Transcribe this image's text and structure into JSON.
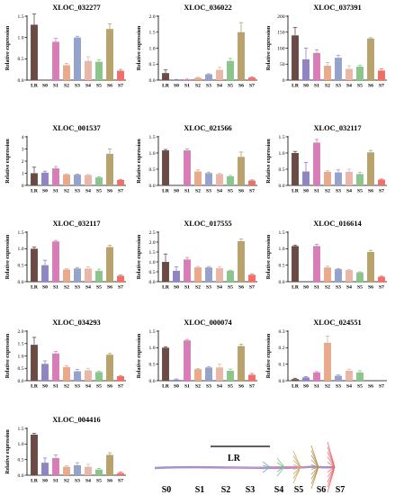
{
  "chart_data": [
    {
      "type": "bar",
      "title": "XLOC_032277",
      "ylabel": "Relative expression",
      "categories": [
        "LR",
        "S0",
        "S1",
        "S2",
        "S3",
        "S4",
        "S5",
        "S6",
        "S7"
      ],
      "values": [
        1.3,
        0,
        0.9,
        0.35,
        1.0,
        0.45,
        0.43,
        1.2,
        0.22
      ],
      "errors": [
        0.25,
        0,
        0.08,
        0.04,
        0.03,
        0.1,
        0.05,
        0.12,
        0.03
      ],
      "ylim": [
        0,
        1.5
      ],
      "yticks": [
        0,
        0.5,
        1.0,
        1.5
      ],
      "yticklabels": [
        "0.0",
        "0.5",
        "1.0",
        "1.5"
      ]
    },
    {
      "type": "bar",
      "title": "XLOC_036022",
      "ylabel": "Relative expression",
      "categories": [
        "LR",
        "S0",
        "S1",
        "S2",
        "S3",
        "S4",
        "S5",
        "S6",
        "S7"
      ],
      "values": [
        0.22,
        0.01,
        0.02,
        0.07,
        0.18,
        0.32,
        0.6,
        1.5,
        0.08
      ],
      "errors": [
        0.1,
        0.01,
        0.01,
        0.02,
        0.02,
        0.08,
        0.08,
        0.3,
        0.02
      ],
      "ylim": [
        0,
        2.0
      ],
      "yticks": [
        0,
        0.5,
        1.0,
        1.5,
        2.0
      ],
      "yticklabels": [
        "0.0",
        "0.5",
        "1.0",
        "1.5",
        "2.0"
      ]
    },
    {
      "type": "bar",
      "title": "XLOC_037391",
      "ylabel": "Relative expression",
      "categories": [
        "LR",
        "S0",
        "S1",
        "S2",
        "S3",
        "S4",
        "S5",
        "S6",
        "S7"
      ],
      "values": [
        140,
        65,
        85,
        45,
        70,
        35,
        42,
        130,
        30
      ],
      "errors": [
        25,
        35,
        10,
        10,
        8,
        10,
        5,
        3,
        5
      ],
      "ylim": [
        0,
        200
      ],
      "yticks": [
        0,
        50,
        100,
        150,
        200
      ],
      "yticklabels": [
        "0",
        "50",
        "100",
        "150",
        "200"
      ]
    },
    {
      "type": "bar",
      "title": "XLOC_001537",
      "ylabel": "Relative expression",
      "categories": [
        "LR",
        "S0",
        "S1",
        "S2",
        "S3",
        "S4",
        "S5",
        "S6",
        "S7"
      ],
      "values": [
        1.0,
        1.05,
        1.4,
        0.9,
        0.88,
        0.85,
        0.65,
        2.6,
        0.45
      ],
      "errors": [
        0.5,
        0.12,
        0.15,
        0.05,
        0.05,
        0.05,
        0.05,
        0.4,
        0.05
      ],
      "ylim": [
        0,
        4
      ],
      "yticks": [
        0,
        1,
        2,
        3,
        4
      ],
      "yticklabels": [
        "0",
        "1",
        "2",
        "3",
        "4"
      ]
    },
    {
      "type": "bar",
      "title": "XLOC_021566",
      "ylabel": "Relative expression",
      "categories": [
        "LR",
        "S0",
        "S1",
        "S2",
        "S3",
        "S4",
        "S5",
        "S6",
        "S7"
      ],
      "values": [
        1.08,
        0,
        1.08,
        0.43,
        0.38,
        0.35,
        0.28,
        0.88,
        0.15
      ],
      "errors": [
        0.03,
        0,
        0.05,
        0.05,
        0.02,
        0.02,
        0.03,
        0.15,
        0.02
      ],
      "ylim": [
        0,
        1.5
      ],
      "yticks": [
        0,
        0.5,
        1.0,
        1.5
      ],
      "yticklabels": [
        "0.0",
        "0.5",
        "1.0",
        "1.5"
      ]
    },
    {
      "type": "bar",
      "title": "XLOC_032117",
      "ylabel": "Relative expression",
      "categories": [
        "LR",
        "S0",
        "S1",
        "S2",
        "S3",
        "S4",
        "S5",
        "S6",
        "S7"
      ],
      "values": [
        1.0,
        0.43,
        1.32,
        0.42,
        0.4,
        0.42,
        0.35,
        1.02,
        0.18
      ],
      "errors": [
        0.05,
        0.28,
        0.1,
        0.03,
        0.08,
        0.08,
        0.05,
        0.06,
        0.02
      ],
      "ylim": [
        0,
        1.5
      ],
      "yticks": [
        0,
        0.5,
        1.0,
        1.5
      ],
      "yticklabels": [
        "0.0",
        "0.5",
        "1.0",
        "1.5"
      ]
    },
    {
      "type": "bar",
      "title": "XLOC_032117",
      "ylabel": "Relative expression",
      "categories": [
        "LR",
        "S0",
        "S1",
        "S2",
        "S3",
        "S4",
        "S5",
        "S6",
        "S7"
      ],
      "values": [
        1.0,
        0.5,
        1.22,
        0.37,
        0.4,
        0.4,
        0.33,
        1.05,
        0.18
      ],
      "errors": [
        0.05,
        0.15,
        0.03,
        0.02,
        0.03,
        0.05,
        0.05,
        0.05,
        0.03
      ],
      "ylim": [
        0,
        1.5
      ],
      "yticks": [
        0,
        0.5,
        1.0,
        1.5
      ],
      "yticklabels": [
        "0.0",
        "0.5",
        "1.0",
        "1.5"
      ]
    },
    {
      "type": "bar",
      "title": "XLOC_017555",
      "ylabel": "Relative expression",
      "categories": [
        "LR",
        "S0",
        "S1",
        "S2",
        "S3",
        "S4",
        "S5",
        "S6",
        "S7"
      ],
      "values": [
        1.0,
        0.55,
        1.12,
        0.72,
        0.72,
        0.68,
        0.55,
        2.05,
        0.35
      ],
      "errors": [
        0.4,
        0.2,
        0.1,
        0.05,
        0.05,
        0.08,
        0.03,
        0.1,
        0.05
      ],
      "ylim": [
        0,
        2.5
      ],
      "yticks": [
        0,
        0.5,
        1.0,
        1.5,
        2.0,
        2.5
      ],
      "yticklabels": [
        "0.0",
        "0.5",
        "1.0",
        "1.5",
        "2.0",
        "2.5"
      ]
    },
    {
      "type": "bar",
      "title": "XLOC_016614",
      "ylabel": "Relative expression",
      "categories": [
        "LR",
        "S0",
        "S1",
        "S2",
        "S3",
        "S4",
        "S5",
        "S6",
        "S7"
      ],
      "values": [
        1.08,
        0,
        1.08,
        0.43,
        0.38,
        0.35,
        0.28,
        0.9,
        0.15
      ],
      "errors": [
        0.03,
        0,
        0.05,
        0.04,
        0.02,
        0.02,
        0.02,
        0.05,
        0.02
      ],
      "ylim": [
        0,
        1.5
      ],
      "yticks": [
        0,
        0.5,
        1.0,
        1.5
      ],
      "yticklabels": [
        "0.0",
        "0.5",
        "1.0",
        "1.5"
      ]
    },
    {
      "type": "bar",
      "title": "XLOC_034293",
      "ylabel": "Relative expression",
      "categories": [
        "LR",
        "S0",
        "S1",
        "S2",
        "S3",
        "S4",
        "S5",
        "S6",
        "S7"
      ],
      "values": [
        1.45,
        0.68,
        1.1,
        0.55,
        0.38,
        0.42,
        0.35,
        1.05,
        0.18
      ],
      "errors": [
        0.3,
        0.12,
        0.08,
        0.06,
        0.08,
        0.08,
        0.04,
        0.05,
        0.03
      ],
      "ylim": [
        0,
        2.0
      ],
      "yticks": [
        0,
        0.5,
        1.0,
        1.5,
        2.0
      ],
      "yticklabels": [
        "0.0",
        "0.5",
        "1.0",
        "1.5",
        "2.0"
      ]
    },
    {
      "type": "bar",
      "title": "XLOC_000074",
      "ylabel": "Relative expression",
      "categories": [
        "LR",
        "S0",
        "S1",
        "S2",
        "S3",
        "S4",
        "S5",
        "S6",
        "S7"
      ],
      "values": [
        1.0,
        0.03,
        1.22,
        0.35,
        0.4,
        0.4,
        0.3,
        1.05,
        0.18
      ],
      "errors": [
        0.03,
        0.02,
        0.03,
        0.02,
        0.02,
        0.1,
        0.05,
        0.06,
        0.04
      ],
      "ylim": [
        0,
        1.5
      ],
      "yticks": [
        0,
        0.5,
        1.0,
        1.5
      ],
      "yticklabels": [
        "0.0",
        "0.5",
        "1.0",
        "1.5"
      ]
    },
    {
      "type": "bar",
      "title": "XLOC_024551",
      "ylabel": "Relative expression",
      "categories": [
        "LR",
        "S0",
        "S1",
        "S2",
        "S3",
        "S4",
        "S5",
        "S6",
        "S7"
      ],
      "values": [
        0.01,
        0.02,
        0.05,
        0.23,
        0.03,
        0.06,
        0.05,
        0,
        0
      ],
      "errors": [
        0.005,
        0.005,
        0.005,
        0.04,
        0.005,
        0.01,
        0.01,
        0,
        0
      ],
      "ylim": [
        0,
        0.3
      ],
      "yticks": [
        0,
        0.1,
        0.2,
        0.3
      ],
      "yticklabels": [
        "0.0",
        "0.1",
        "0.2",
        "0.3"
      ]
    },
    {
      "type": "bar",
      "title": "XLOC_004416",
      "ylabel": "Relative expression",
      "categories": [
        "LR",
        "S0",
        "S1",
        "S2",
        "S3",
        "S4",
        "S5",
        "S6",
        "S7"
      ],
      "values": [
        1.3,
        0.4,
        0.55,
        0.27,
        0.32,
        0.27,
        0.18,
        0.65,
        0.07
      ],
      "errors": [
        0.04,
        0.15,
        0.1,
        0.04,
        0.08,
        0.08,
        0.04,
        0.07,
        0.03
      ],
      "ylim": [
        0,
        1.5
      ],
      "yticks": [
        0,
        0.5,
        1.0,
        1.5
      ],
      "yticklabels": [
        "0.0",
        "0.5",
        "1.0",
        "1.5"
      ]
    }
  ],
  "bar_colors": [
    "#6b4b45",
    "#8f85c2",
    "#d77db8",
    "#e8aa8a",
    "#95a2c9",
    "#e8b7a8",
    "#8cc58b",
    "#b8a26e",
    "#ee7068"
  ],
  "diagram": {
    "region_label": "LR",
    "stage_labels": [
      "S0",
      "S1",
      "S2",
      "S3",
      "S4",
      "S5",
      "S6",
      "S7"
    ]
  }
}
